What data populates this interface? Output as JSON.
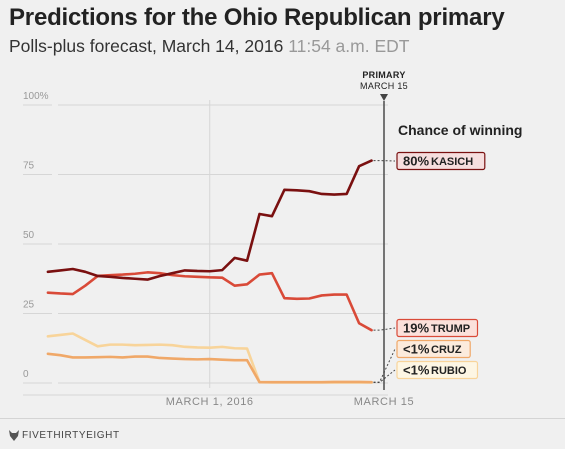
{
  "header": {
    "title": "Predictions for the Ohio Republican primary",
    "subtitle": "Polls-plus forecast, March 14, 2016",
    "time": "11:54 a.m. EDT"
  },
  "footer": {
    "brand": "FIVETHIRTYEIGHT",
    "logo_icon": "fox-icon"
  },
  "chart_data": {
    "type": "line",
    "title": "Predictions for the Ohio Republican primary",
    "subtitle": "Polls-plus forecast, March 14, 2016 11:54 a.m. EDT",
    "legend_title": "Chance of winning",
    "xlabel": "",
    "ylabel": "",
    "ylim": [
      0,
      100
    ],
    "yticks": [
      0,
      25,
      50,
      75,
      100
    ],
    "ytick_labels": [
      "0",
      "25",
      "50",
      "75",
      "100%"
    ],
    "xlim": [
      "2016-02-15",
      "2016-03-15"
    ],
    "xticks": [
      "2016-03-01",
      "2016-03-15"
    ],
    "xtick_labels": [
      "MARCH 1, 2016",
      "MARCH 15"
    ],
    "grid": true,
    "event_marker": {
      "date": "2016-03-15",
      "label_top": "PRIMARY",
      "label_bottom": "MARCH 15"
    },
    "series": [
      {
        "name": "KASICH",
        "final_label": "80%",
        "color": "#7a1010",
        "x": [
          "2016-02-17",
          "2016-02-18",
          "2016-02-19",
          "2016-02-20",
          "2016-02-21",
          "2016-02-22",
          "2016-02-23",
          "2016-02-24",
          "2016-02-25",
          "2016-02-26",
          "2016-02-27",
          "2016-02-28",
          "2016-02-29",
          "2016-03-01",
          "2016-03-02",
          "2016-03-03",
          "2016-03-04",
          "2016-03-05",
          "2016-03-06",
          "2016-03-07",
          "2016-03-08",
          "2016-03-09",
          "2016-03-10",
          "2016-03-11",
          "2016-03-12",
          "2016-03-13",
          "2016-03-14"
        ],
        "values": [
          40,
          40.5,
          41,
          40,
          38.5,
          38.2,
          37.8,
          37.5,
          37.2,
          38.5,
          39.5,
          40.5,
          40.3,
          40.2,
          40.6,
          45,
          44,
          60.8,
          60,
          69.5,
          69.3,
          69,
          68,
          67.8,
          68,
          78,
          80
        ]
      },
      {
        "name": "TRUMP",
        "final_label": "19%",
        "color": "#d94a38",
        "x": [
          "2016-02-17",
          "2016-02-18",
          "2016-02-19",
          "2016-02-20",
          "2016-02-21",
          "2016-02-22",
          "2016-02-23",
          "2016-02-24",
          "2016-02-25",
          "2016-02-26",
          "2016-02-27",
          "2016-02-28",
          "2016-02-29",
          "2016-03-01",
          "2016-03-02",
          "2016-03-03",
          "2016-03-04",
          "2016-03-05",
          "2016-03-06",
          "2016-03-07",
          "2016-03-08",
          "2016-03-09",
          "2016-03-10",
          "2016-03-11",
          "2016-03-12",
          "2016-03-13",
          "2016-03-14"
        ],
        "values": [
          32.5,
          32.2,
          32,
          35,
          38.5,
          38.8,
          39,
          39.3,
          39.8,
          39.5,
          38.8,
          38.4,
          38.2,
          38,
          37.9,
          35,
          35.5,
          39,
          39.5,
          30.5,
          30.3,
          30.4,
          31.5,
          31.8,
          31.8,
          21.5,
          19
        ]
      },
      {
        "name": "CRUZ",
        "final_label": "<1%",
        "color": "#f0a868",
        "x": [
          "2016-02-17",
          "2016-02-18",
          "2016-02-19",
          "2016-02-20",
          "2016-02-21",
          "2016-02-22",
          "2016-02-23",
          "2016-02-24",
          "2016-02-25",
          "2016-02-26",
          "2016-02-27",
          "2016-02-28",
          "2016-02-29",
          "2016-03-01",
          "2016-03-02",
          "2016-03-03",
          "2016-03-04",
          "2016-03-05",
          "2016-03-06",
          "2016-03-07",
          "2016-03-08",
          "2016-03-09",
          "2016-03-10",
          "2016-03-11",
          "2016-03-12",
          "2016-03-13",
          "2016-03-14"
        ],
        "values": [
          10.5,
          10,
          9.2,
          9.2,
          9.3,
          9.4,
          9.2,
          9.5,
          9.5,
          9,
          8.8,
          8.6,
          8.5,
          8.6,
          8.4,
          8.2,
          8.2,
          0.3,
          0.3,
          0.3,
          0.3,
          0.3,
          0.3,
          0.4,
          0.4,
          0.4,
          0.3
        ]
      },
      {
        "name": "RUBIO",
        "final_label": "<1%",
        "color": "#f8d49a",
        "x": [
          "2016-02-17",
          "2016-02-18",
          "2016-02-19",
          "2016-02-20",
          "2016-02-21",
          "2016-02-22",
          "2016-02-23",
          "2016-02-24",
          "2016-02-25",
          "2016-02-26",
          "2016-02-27",
          "2016-02-28",
          "2016-02-29",
          "2016-03-01",
          "2016-03-02",
          "2016-03-03",
          "2016-03-04",
          "2016-03-05",
          "2016-03-06",
          "2016-03-07",
          "2016-03-08",
          "2016-03-09",
          "2016-03-10",
          "2016-03-11",
          "2016-03-12",
          "2016-03-13",
          "2016-03-14"
        ],
        "values": [
          16.8,
          17.3,
          17.8,
          15.5,
          13.2,
          13.8,
          13.8,
          13.6,
          13.7,
          13.8,
          13.6,
          13,
          12.8,
          12.7,
          13,
          12.5,
          12.4,
          0.3,
          0.2,
          0.2,
          0.2,
          0.2,
          0.2,
          0.2,
          0.2,
          0.2,
          0.2
        ]
      }
    ]
  }
}
